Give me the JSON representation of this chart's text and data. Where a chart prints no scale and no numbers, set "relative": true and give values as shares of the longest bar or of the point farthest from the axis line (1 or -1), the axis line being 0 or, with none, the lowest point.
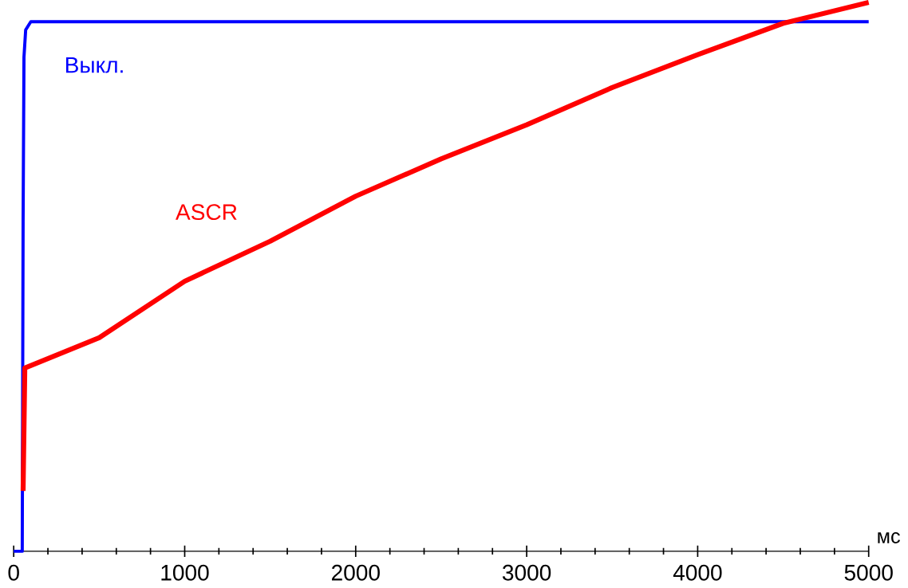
{
  "chart_data": {
    "type": "line",
    "relative": true,
    "xlabel": "мс",
    "xlim": [
      0,
      5000
    ],
    "xticks": [
      0,
      1000,
      2000,
      3000,
      4000,
      5000
    ],
    "legend": false,
    "grid": false,
    "series": [
      {
        "name": "Выкл.",
        "color": "#0000ff",
        "x": [
          0,
          50,
          55,
          60,
          70,
          100,
          5000
        ],
        "values": [
          0,
          0,
          0.6,
          0.9,
          0.95,
          0.965,
          0.965
        ]
      },
      {
        "name": "ASCR",
        "color": "#ff0000",
        "x": [
          55,
          65,
          500,
          1000,
          1500,
          2000,
          2500,
          3000,
          3500,
          4000,
          4500,
          5000
        ],
        "values": [
          0.11,
          0.334,
          0.389,
          0.492,
          0.565,
          0.647,
          0.715,
          0.777,
          0.845,
          0.905,
          0.962,
          1
        ]
      }
    ]
  }
}
